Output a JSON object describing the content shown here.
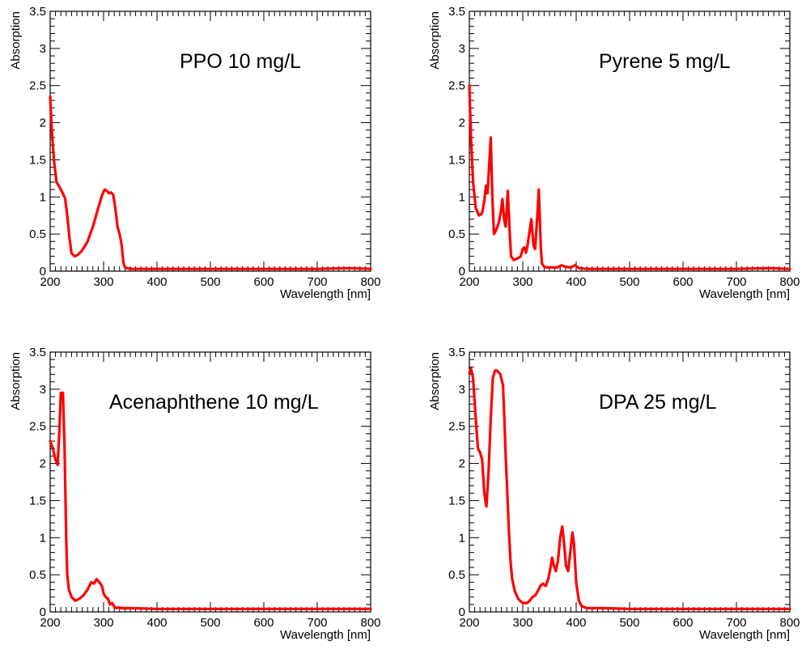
{
  "charts": [
    {
      "type": "line",
      "title": "",
      "annotation": "PPO 10 mg/L",
      "xlabel": "Wavelength [nm]",
      "ylabel": "Absorption",
      "xlim": [
        200,
        800
      ],
      "ylim": [
        0,
        3.5
      ],
      "xticks": [
        200,
        300,
        400,
        500,
        600,
        700,
        800
      ],
      "yticks": [
        0,
        0.5,
        1,
        1.5,
        2,
        2.5,
        3,
        3.5
      ],
      "ytick_labels": [
        "0",
        "0.5",
        "1",
        "1.5",
        "2",
        "2.5",
        "3",
        "3.5"
      ],
      "series": [
        {
          "name": "PPO 10 mg/L",
          "color": "#ff0000",
          "x": [
            200,
            203,
            207,
            212,
            220,
            228,
            232,
            236,
            240,
            246,
            252,
            260,
            270,
            280,
            290,
            297,
            302,
            306,
            310,
            314,
            318,
            322,
            326,
            330,
            334,
            337,
            340,
            344,
            350,
            400,
            500,
            600,
            700,
            760,
            800
          ],
          "y": [
            2.35,
            1.9,
            1.5,
            1.2,
            1.1,
            0.98,
            0.75,
            0.45,
            0.24,
            0.2,
            0.22,
            0.28,
            0.4,
            0.6,
            0.85,
            1.02,
            1.1,
            1.08,
            1.05,
            1.06,
            1.03,
            0.85,
            0.6,
            0.5,
            0.35,
            0.12,
            0.05,
            0.04,
            0.03,
            0.03,
            0.03,
            0.03,
            0.03,
            0.04,
            0.03
          ]
        }
      ]
    },
    {
      "type": "line",
      "title": "",
      "annotation": "Pyrene 5 mg/L",
      "xlabel": "Wavelength [nm]",
      "ylabel": "Absorption",
      "xlim": [
        200,
        800
      ],
      "ylim": [
        0,
        3.5
      ],
      "xticks": [
        200,
        300,
        400,
        500,
        600,
        700,
        800
      ],
      "yticks": [
        0,
        0.5,
        1,
        1.5,
        2,
        2.5,
        3,
        3.5
      ],
      "ytick_labels": [
        "0",
        "0.5",
        "1",
        "1.5",
        "2",
        "2.5",
        "3",
        "3.5"
      ],
      "series": [
        {
          "name": "Pyrene 5 mg/L",
          "color": "#ff0000",
          "x": [
            200,
            203,
            207,
            212,
            218,
            224,
            228,
            231,
            234,
            237,
            240,
            243,
            246,
            250,
            255,
            259,
            262,
            265,
            268,
            272,
            275,
            278,
            283,
            290,
            296,
            300,
            303,
            306,
            309,
            313,
            316,
            320,
            323,
            327,
            330,
            334,
            336,
            340,
            345,
            355,
            365,
            372,
            380,
            390,
            398,
            405,
            420,
            500,
            600,
            700,
            760,
            800
          ],
          "y": [
            2.5,
            1.8,
            1.2,
            0.85,
            0.75,
            0.78,
            0.95,
            1.15,
            1.05,
            1.4,
            1.8,
            1.0,
            0.5,
            0.55,
            0.65,
            0.8,
            0.97,
            0.7,
            0.6,
            1.08,
            0.6,
            0.2,
            0.15,
            0.17,
            0.2,
            0.3,
            0.32,
            0.25,
            0.35,
            0.55,
            0.7,
            0.35,
            0.3,
            0.7,
            1.1,
            0.3,
            0.1,
            0.06,
            0.05,
            0.05,
            0.05,
            0.08,
            0.06,
            0.05,
            0.08,
            0.04,
            0.03,
            0.03,
            0.03,
            0.03,
            0.04,
            0.03
          ]
        }
      ]
    },
    {
      "type": "line",
      "title": "",
      "annotation": "Acenaphthene 10 mg/L",
      "xlabel": "Wavelength [nm]",
      "ylabel": "Absorption",
      "xlim": [
        200,
        800
      ],
      "ylim": [
        0,
        3.5
      ],
      "xticks": [
        200,
        300,
        400,
        500,
        600,
        700,
        800
      ],
      "yticks": [
        0,
        0.5,
        1,
        1.5,
        2,
        2.5,
        3,
        3.5
      ],
      "ytick_labels": [
        "0",
        "0.5",
        "1",
        "1.5",
        "2",
        "2.5",
        "3",
        "3.5"
      ],
      "series": [
        {
          "name": "Acenaphthene 10 mg/L",
          "color": "#ff0000",
          "x": [
            200,
            205,
            210,
            214,
            217,
            220,
            224,
            227,
            230,
            232,
            235,
            240,
            247,
            255,
            262,
            270,
            277,
            282,
            287,
            292,
            297,
            300,
            304,
            308,
            312,
            316,
            320,
            324,
            328,
            335,
            350,
            400,
            500,
            600,
            700,
            760,
            800
          ],
          "y": [
            2.3,
            2.2,
            2.05,
            1.98,
            2.4,
            2.95,
            2.95,
            2.2,
            1.0,
            0.5,
            0.3,
            0.2,
            0.15,
            0.18,
            0.22,
            0.3,
            0.4,
            0.38,
            0.44,
            0.4,
            0.35,
            0.25,
            0.2,
            0.18,
            0.1,
            0.12,
            0.07,
            0.05,
            0.06,
            0.05,
            0.05,
            0.04,
            0.04,
            0.04,
            0.04,
            0.04,
            0.04
          ]
        }
      ]
    },
    {
      "type": "line",
      "title": "",
      "annotation": "DPA 25 mg/L",
      "xlabel": "Wavelength [nm]",
      "ylabel": "Absorption",
      "xlim": [
        200,
        800
      ],
      "ylim": [
        0,
        3.5
      ],
      "xticks": [
        200,
        300,
        400,
        500,
        600,
        700,
        800
      ],
      "yticks": [
        0,
        0.5,
        1,
        1.5,
        2,
        2.5,
        3,
        3.5
      ],
      "ytick_labels": [
        "0",
        "0.5",
        "1",
        "1.5",
        "2",
        "2.5",
        "3",
        "3.5"
      ],
      "series": [
        {
          "name": "DPA 25 mg/L",
          "color": "#ff0000",
          "x": [
            200,
            203,
            207,
            212,
            216,
            220,
            224,
            228,
            232,
            236,
            240,
            244,
            248,
            252,
            258,
            263,
            266,
            268,
            271,
            274,
            277,
            280,
            285,
            292,
            300,
            308,
            313,
            318,
            323,
            328,
            333,
            338,
            343,
            348,
            352,
            355,
            358,
            362,
            366,
            370,
            374,
            377,
            381,
            385,
            389,
            393,
            396,
            400,
            405,
            410,
            420,
            450,
            500,
            600,
            700,
            760,
            800
          ],
          "y": [
            3.22,
            3.28,
            3.15,
            2.6,
            2.2,
            2.15,
            2.05,
            1.6,
            1.42,
            1.9,
            2.6,
            3.15,
            3.25,
            3.25,
            3.2,
            3.05,
            2.5,
            2.1,
            1.6,
            1.1,
            0.7,
            0.45,
            0.28,
            0.17,
            0.12,
            0.12,
            0.15,
            0.2,
            0.22,
            0.28,
            0.35,
            0.38,
            0.35,
            0.45,
            0.6,
            0.73,
            0.63,
            0.55,
            0.7,
            1.0,
            1.15,
            0.95,
            0.62,
            0.55,
            0.8,
            1.07,
            0.9,
            0.4,
            0.15,
            0.08,
            0.05,
            0.05,
            0.04,
            0.04,
            0.04,
            0.04,
            0.04
          ]
        }
      ]
    }
  ]
}
